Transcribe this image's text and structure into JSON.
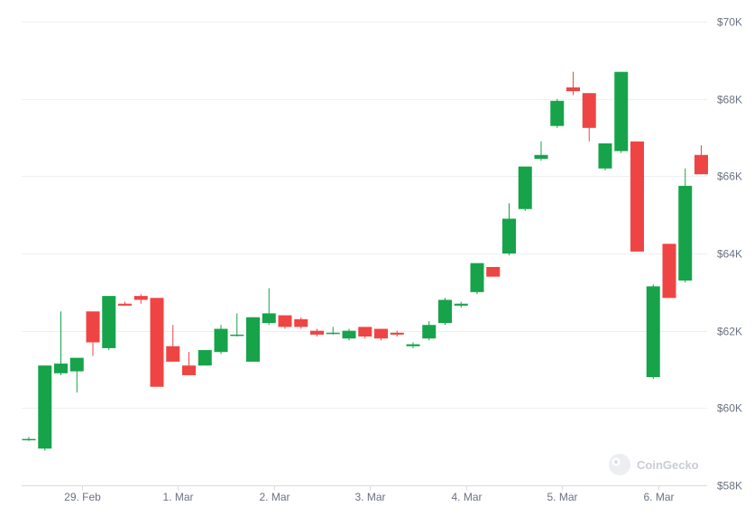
{
  "chart_data": {
    "type": "candlestick",
    "colors": {
      "up": "#16a34a",
      "down": "#ef4444"
    },
    "y_axis": {
      "min": 58000,
      "max": 70000,
      "position": "right",
      "ticks": [
        {
          "value": 58000,
          "label": "$58K"
        },
        {
          "value": 60000,
          "label": "$60K"
        },
        {
          "value": 62000,
          "label": "$62K"
        },
        {
          "value": 64000,
          "label": "$64K"
        },
        {
          "value": 66000,
          "label": "$66K"
        },
        {
          "value": 68000,
          "label": "$68K"
        },
        {
          "value": 70000,
          "label": "$70K"
        }
      ]
    },
    "x_axis": {
      "min": 0,
      "max": 43,
      "ticks": [
        {
          "value": 3.3,
          "label": "29. Feb"
        },
        {
          "value": 9.3,
          "label": "1. Mar"
        },
        {
          "value": 15.3,
          "label": "2. Mar"
        },
        {
          "value": 21.3,
          "label": "3. Mar"
        },
        {
          "value": 27.3,
          "label": "4. Mar"
        },
        {
          "value": 33.3,
          "label": "5. Mar"
        },
        {
          "value": 39.3,
          "label": "6. Mar"
        }
      ]
    },
    "grid": true,
    "watermark": "CoinGecko",
    "candles": [
      {
        "x": 0,
        "o": 59200,
        "h": 59250,
        "l": 59150,
        "c": 59200
      },
      {
        "x": 1,
        "o": 58950,
        "h": 61100,
        "l": 58900,
        "c": 61100
      },
      {
        "x": 2,
        "o": 60900,
        "h": 62500,
        "l": 60850,
        "c": 61150
      },
      {
        "x": 3,
        "o": 60950,
        "h": 61300,
        "l": 60400,
        "c": 61300
      },
      {
        "x": 4,
        "o": 62500,
        "h": 62500,
        "l": 61350,
        "c": 61700
      },
      {
        "x": 5,
        "o": 61550,
        "h": 62900,
        "l": 61500,
        "c": 62900
      },
      {
        "x": 6,
        "o": 62700,
        "h": 62750,
        "l": 62650,
        "c": 62650
      },
      {
        "x": 7,
        "o": 62900,
        "h": 62950,
        "l": 62700,
        "c": 62800
      },
      {
        "x": 8,
        "o": 62850,
        "h": 62850,
        "l": 60550,
        "c": 60550
      },
      {
        "x": 9,
        "o": 61600,
        "h": 62150,
        "l": 61200,
        "c": 61200
      },
      {
        "x": 10,
        "o": 61100,
        "h": 61450,
        "l": 60850,
        "c": 60850
      },
      {
        "x": 11,
        "o": 61100,
        "h": 61500,
        "l": 61100,
        "c": 61500
      },
      {
        "x": 12,
        "o": 61450,
        "h": 62150,
        "l": 61400,
        "c": 62050
      },
      {
        "x": 13,
        "o": 61900,
        "h": 62450,
        "l": 61850,
        "c": 61900
      },
      {
        "x": 14,
        "o": 61200,
        "h": 62350,
        "l": 61200,
        "c": 62350
      },
      {
        "x": 15,
        "o": 62200,
        "h": 63100,
        "l": 62150,
        "c": 62450
      },
      {
        "x": 16,
        "o": 62400,
        "h": 62400,
        "l": 62050,
        "c": 62100
      },
      {
        "x": 17,
        "o": 62300,
        "h": 62350,
        "l": 62050,
        "c": 62100
      },
      {
        "x": 18,
        "o": 62000,
        "h": 62050,
        "l": 61850,
        "c": 61900
      },
      {
        "x": 19,
        "o": 61950,
        "h": 62100,
        "l": 61900,
        "c": 61950
      },
      {
        "x": 20,
        "o": 61800,
        "h": 62050,
        "l": 61750,
        "c": 62000
      },
      {
        "x": 21,
        "o": 62100,
        "h": 62100,
        "l": 61800,
        "c": 61850
      },
      {
        "x": 22,
        "o": 62050,
        "h": 62050,
        "l": 61750,
        "c": 61800
      },
      {
        "x": 23,
        "o": 61950,
        "h": 62000,
        "l": 61850,
        "c": 61900
      },
      {
        "x": 24,
        "o": 61600,
        "h": 61700,
        "l": 61550,
        "c": 61650
      },
      {
        "x": 25,
        "o": 61800,
        "h": 62250,
        "l": 61750,
        "c": 62150
      },
      {
        "x": 26,
        "o": 62200,
        "h": 62850,
        "l": 62150,
        "c": 62800
      },
      {
        "x": 27,
        "o": 62650,
        "h": 62750,
        "l": 62600,
        "c": 62700
      },
      {
        "x": 28,
        "o": 63000,
        "h": 63750,
        "l": 62950,
        "c": 63750
      },
      {
        "x": 29,
        "o": 63650,
        "h": 63650,
        "l": 63400,
        "c": 63400
      },
      {
        "x": 30,
        "o": 64000,
        "h": 65300,
        "l": 63950,
        "c": 64900
      },
      {
        "x": 31,
        "o": 65150,
        "h": 66250,
        "l": 65100,
        "c": 66250
      },
      {
        "x": 32,
        "o": 66450,
        "h": 66900,
        "l": 66400,
        "c": 66550
      },
      {
        "x": 33,
        "o": 67300,
        "h": 68000,
        "l": 67250,
        "c": 67950
      },
      {
        "x": 34,
        "o": 68300,
        "h": 68700,
        "l": 68100,
        "c": 68200
      },
      {
        "x": 35,
        "o": 68150,
        "h": 68150,
        "l": 66900,
        "c": 67250
      },
      {
        "x": 36,
        "o": 66200,
        "h": 66850,
        "l": 66150,
        "c": 66850
      },
      {
        "x": 37,
        "o": 66650,
        "h": 68700,
        "l": 66600,
        "c": 68700
      },
      {
        "x": 38,
        "o": 66900,
        "h": 66900,
        "l": 64050,
        "c": 64050
      },
      {
        "x": 39,
        "o": 60800,
        "h": 63200,
        "l": 60750,
        "c": 63150
      },
      {
        "x": 40,
        "o": 64250,
        "h": 64250,
        "l": 62850,
        "c": 62850
      },
      {
        "x": 41,
        "o": 63300,
        "h": 66200,
        "l": 63250,
        "c": 65750
      },
      {
        "x": 42,
        "o": 66550,
        "h": 66800,
        "l": 66050,
        "c": 66050
      }
    ]
  }
}
